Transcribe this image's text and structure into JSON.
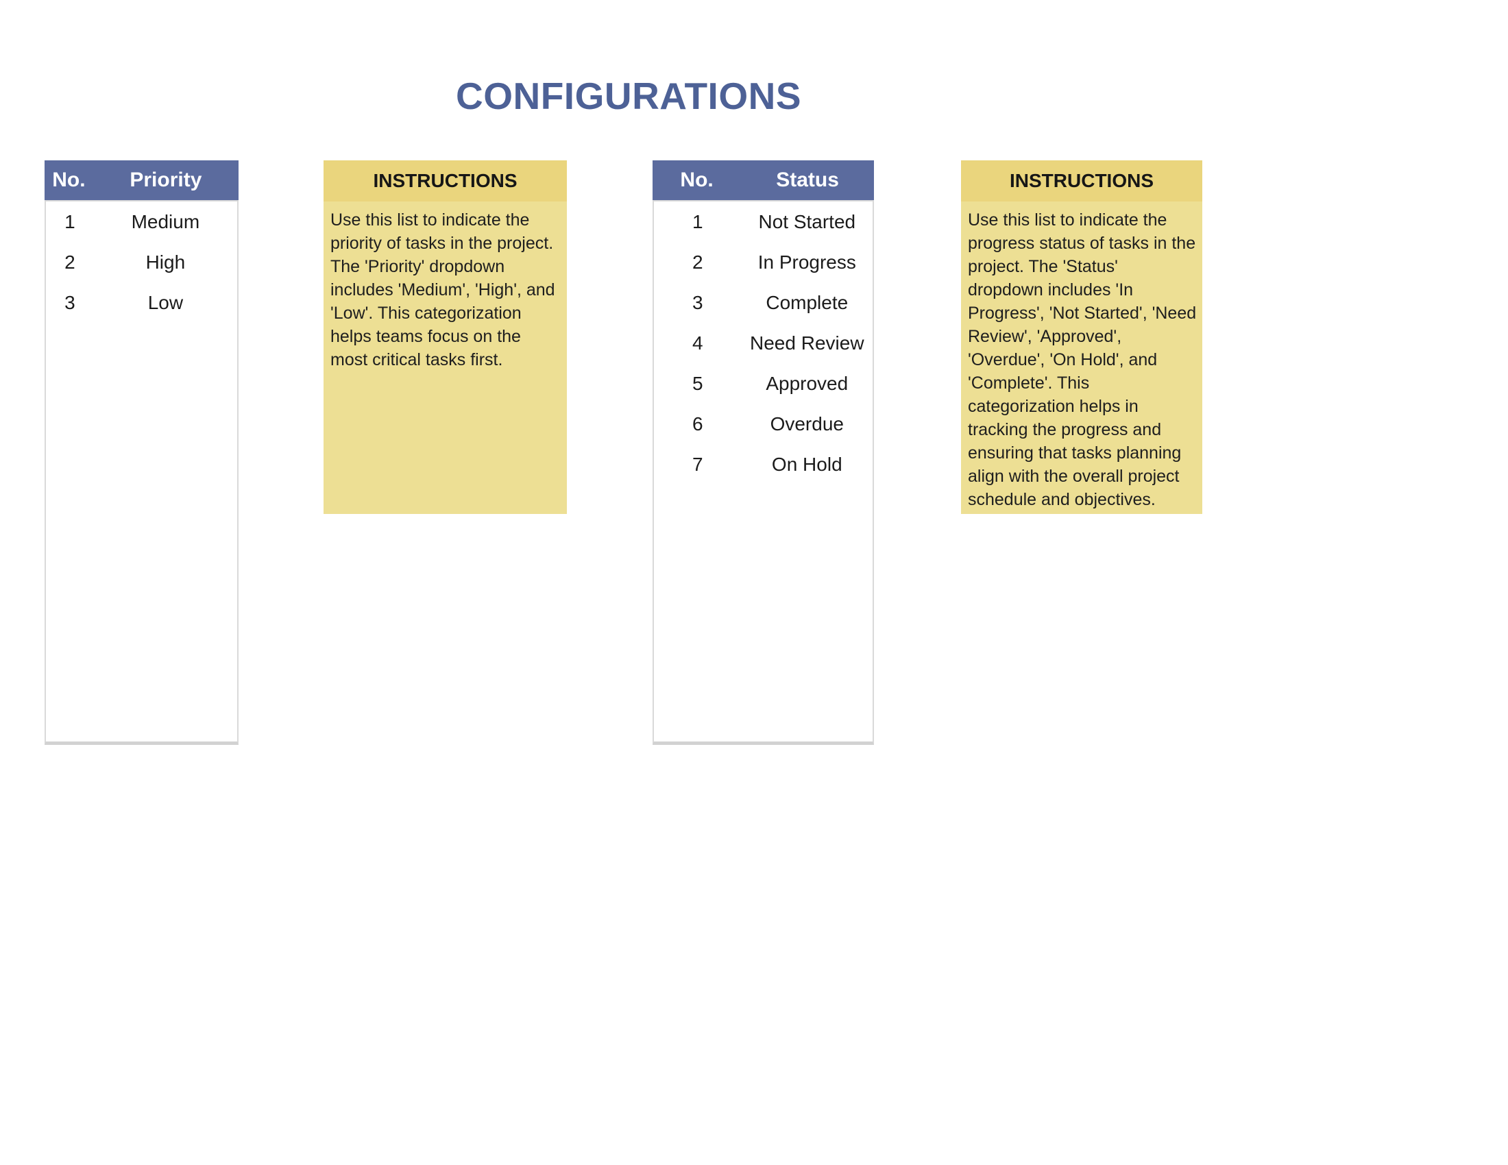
{
  "page": {
    "title": "CONFIGURATIONS"
  },
  "colors": {
    "title_text": "#4d6196",
    "table_header_bg": "#5b6b9e",
    "table_header_text": "#ffffff",
    "note_header_bg": "#ead57d",
    "note_body_bg": "#eddf94",
    "table_border": "#d9d9d9",
    "body_text": "#1b1b1b"
  },
  "priority_table": {
    "col_no": "No.",
    "col_label": "Priority",
    "rows": [
      {
        "no": "1",
        "value": "Medium"
      },
      {
        "no": "2",
        "value": "High"
      },
      {
        "no": "3",
        "value": "Low"
      }
    ]
  },
  "priority_note": {
    "title": "INSTRUCTIONS",
    "text": "Use this list to indicate the priority of tasks in the project. The 'Priority' dropdown includes 'Medium', 'High', and 'Low'. This categorization  helps teams focus on the most critical tasks first."
  },
  "status_table": {
    "col_no": "No.",
    "col_label": "Status",
    "rows": [
      {
        "no": "1",
        "value": "Not Started"
      },
      {
        "no": "2",
        "value": "In Progress"
      },
      {
        "no": "3",
        "value": "Complete"
      },
      {
        "no": "4",
        "value": "Need Review"
      },
      {
        "no": "5",
        "value": "Approved"
      },
      {
        "no": "6",
        "value": "Overdue"
      },
      {
        "no": "7",
        "value": "On Hold"
      }
    ]
  },
  "status_note": {
    "title": "INSTRUCTIONS",
    "text": "Use this list to indicate the progress status of tasks in the project. The 'Status' dropdown includes 'In Progress', 'Not Started', 'Need Review', 'Approved', 'Overdue', 'On Hold', and 'Complete'. This categorization helps in tracking the progress and ensuring that tasks planning align with the overall project schedule and objectives."
  }
}
